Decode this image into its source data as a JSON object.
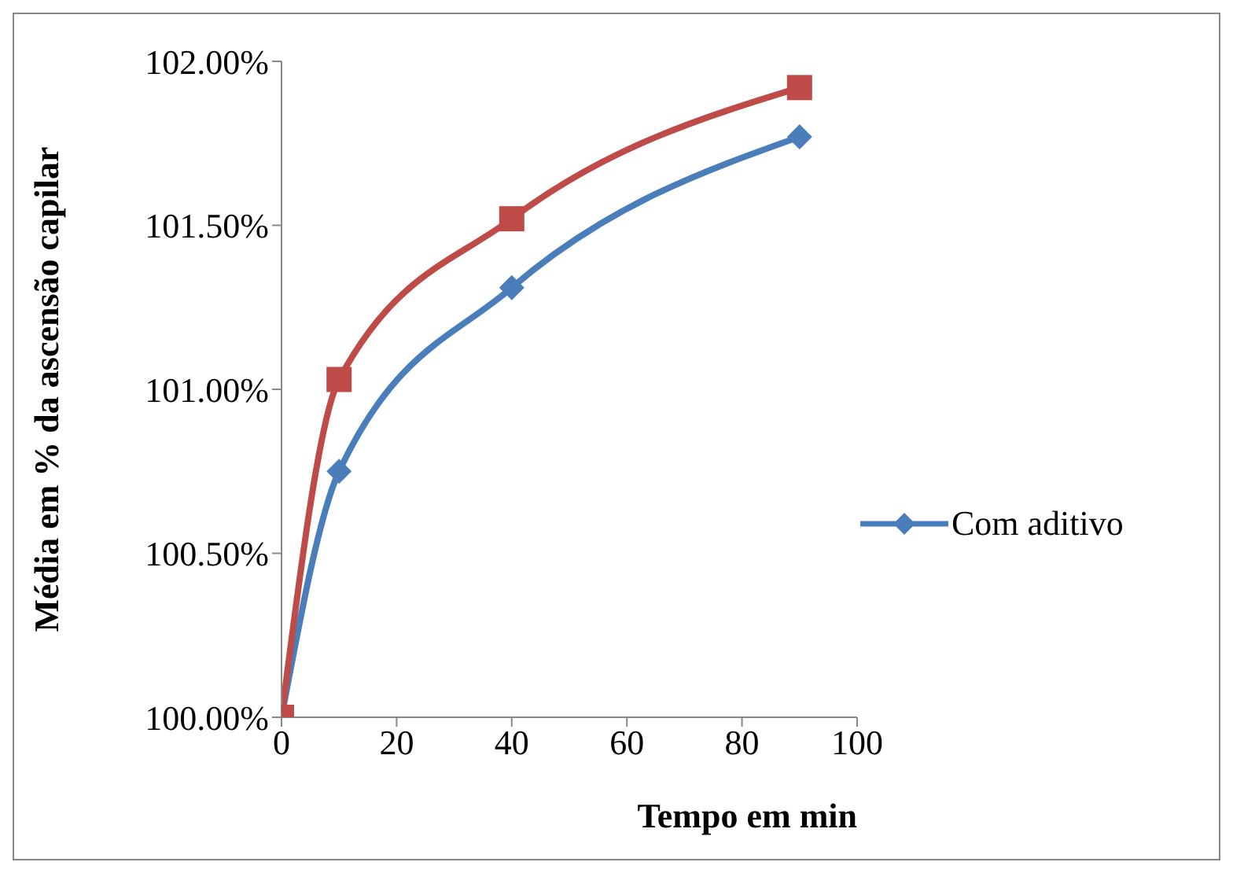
{
  "chart_data": {
    "type": "line",
    "xlabel": "Tempo em min",
    "ylabel": "Média em % da ascensão capilar",
    "xlim": [
      0,
      100
    ],
    "xticks": [
      0,
      20,
      40,
      60,
      80,
      100
    ],
    "ylim": [
      100,
      102
    ],
    "yticks": [
      {
        "value": 100,
        "label": "100.00%"
      },
      {
        "value": 100.5,
        "label": "100.50%"
      },
      {
        "value": 101,
        "label": "101.00%"
      },
      {
        "value": 101.5,
        "label": "101.50%"
      },
      {
        "value": 102,
        "label": "102.00%"
      }
    ],
    "grid": false,
    "legend": "right",
    "line_style": "solid",
    "series": [
      {
        "name": "Com aditivo",
        "color": "#4a7ebb",
        "marker": "diamond",
        "x": [
          0,
          10,
          40,
          90
        ],
        "values": [
          100,
          100.75,
          101.31,
          101.77
        ]
      },
      {
        "color": "#be4b48",
        "marker": "square",
        "x": [
          0,
          10,
          40,
          90
        ],
        "values": [
          100,
          101.03,
          101.52,
          101.92
        ]
      }
    ]
  }
}
